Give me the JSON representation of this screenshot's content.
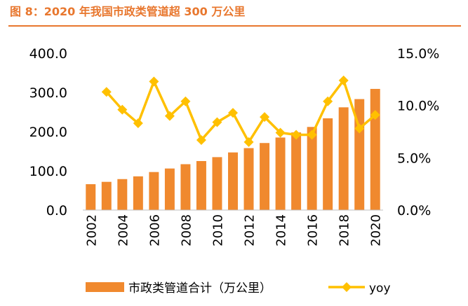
{
  "figure": {
    "title": "图 8：2020 年我国市政类管道超 300 万公里"
  },
  "chart_data": {
    "type": "bar",
    "categories": [
      "2002",
      "2003",
      "2004",
      "2005",
      "2006",
      "2007",
      "2008",
      "2009",
      "2010",
      "2011",
      "2012",
      "2013",
      "2014",
      "2015",
      "2016",
      "2017",
      "2018",
      "2019",
      "2020"
    ],
    "x_tick_labels": [
      "2002",
      "2004",
      "2006",
      "2008",
      "2010",
      "2012",
      "2014",
      "2016",
      "2018",
      "2020"
    ],
    "series": [
      {
        "name": "市政类管道合计（万公里）",
        "kind": "bar",
        "axis": "left",
        "color": "#F0892E",
        "values": [
          66,
          72,
          79,
          86,
          97,
          106,
          117,
          125,
          135,
          147,
          158,
          171,
          185,
          198,
          212,
          234,
          262,
          283,
          309
        ]
      },
      {
        "name": "yoy",
        "kind": "line",
        "axis": "right",
        "color": "#FFC000",
        "values": [
          null,
          11.3,
          9.6,
          8.3,
          12.3,
          9.0,
          10.4,
          6.7,
          8.4,
          9.3,
          6.5,
          8.9,
          7.4,
          7.2,
          7.2,
          10.4,
          12.4,
          7.8,
          9.1
        ]
      }
    ],
    "y_left": {
      "ylim": [
        0,
        400
      ],
      "ticks": [
        "0.0",
        "100.0",
        "200.0",
        "300.0",
        "400.0"
      ]
    },
    "y_right": {
      "ylim": [
        0,
        15
      ],
      "ticks": [
        "0.0%",
        "5.0%",
        "10.0%",
        "15.0%"
      ]
    },
    "legend": {
      "position": "bottom"
    },
    "grid": false
  }
}
